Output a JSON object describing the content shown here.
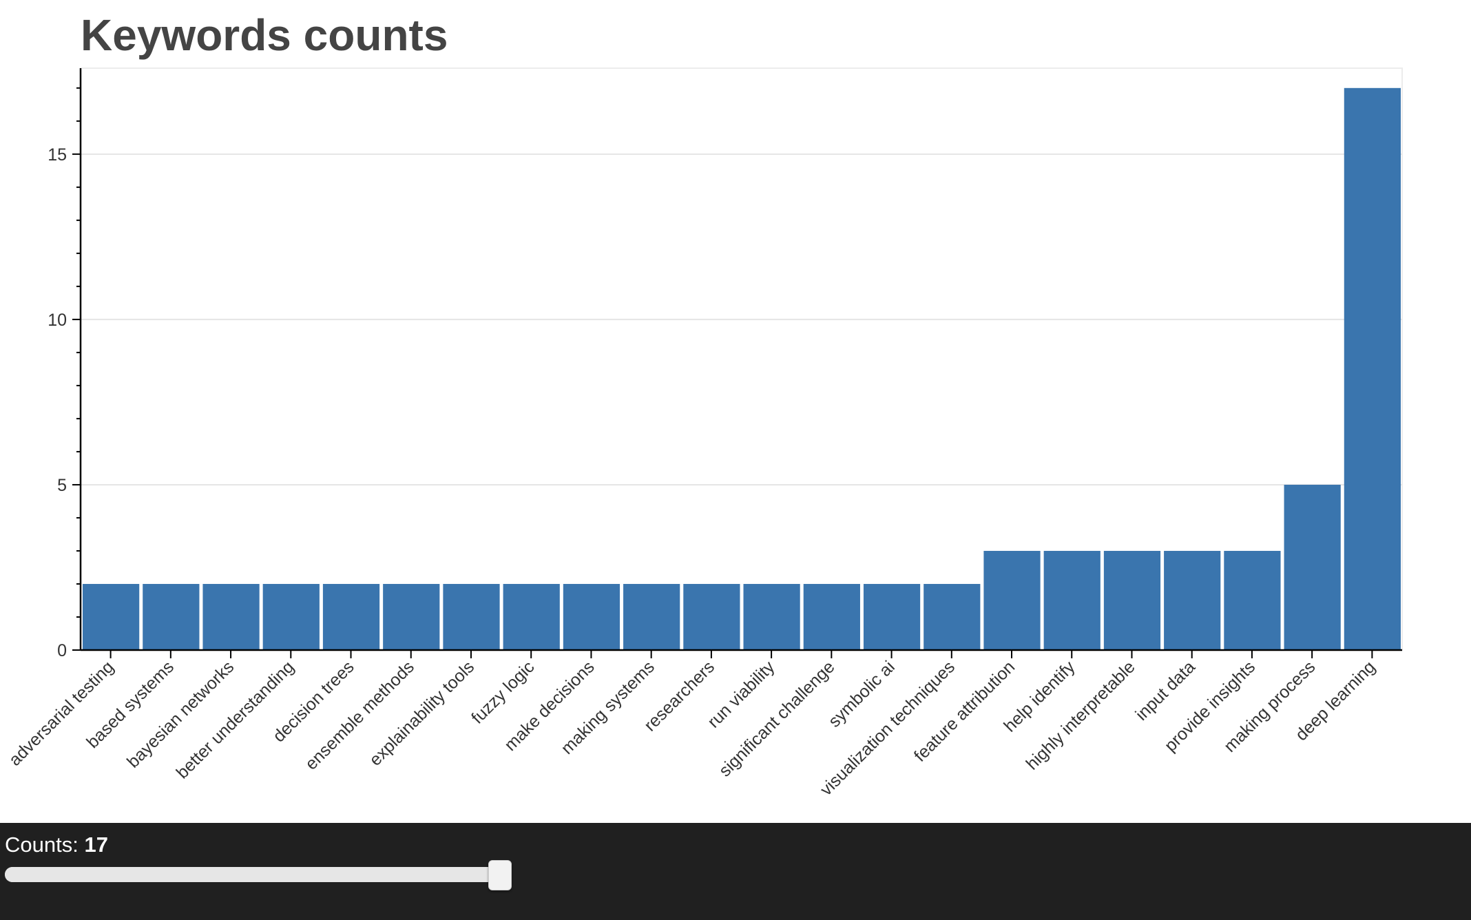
{
  "chart_data": {
    "type": "bar",
    "title": "Keywords counts",
    "xlabel": "",
    "ylabel": "",
    "categories": [
      "adversarial testing",
      "based systems",
      "bayesian networks",
      "better understanding",
      "decision trees",
      "ensemble methods",
      "explainability tools",
      "fuzzy logic",
      "make decisions",
      "making systems",
      "researchers",
      "run viability",
      "significant challenge",
      "symbolic ai",
      "visualization techniques",
      "feature attribution",
      "help identify",
      "highly interpretable",
      "input data",
      "provide insights",
      "making process",
      "deep learning"
    ],
    "values": [
      2,
      2,
      2,
      2,
      2,
      2,
      2,
      2,
      2,
      2,
      2,
      2,
      2,
      2,
      2,
      3,
      3,
      3,
      3,
      3,
      5,
      17
    ],
    "ylim": [
      0,
      17.6
    ],
    "yticks": [
      0,
      5,
      10,
      15
    ],
    "grid": true,
    "bar_color": "#3a75ae",
    "grid_color": "#e5e5e5"
  },
  "controls": {
    "slider_label": "Counts:",
    "slider_value": "17",
    "slider_min": 0,
    "slider_max": 17,
    "slider_current": 17,
    "panel_color": "#202020"
  }
}
